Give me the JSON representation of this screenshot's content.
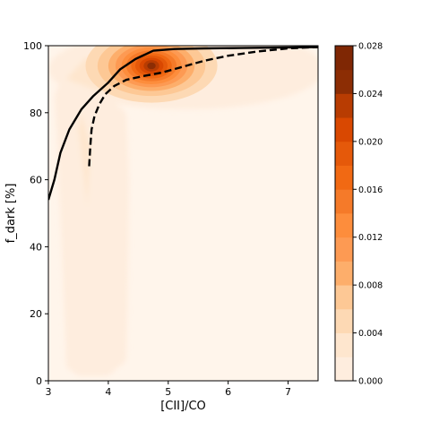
{
  "chart_data": {
    "type": "heatmap",
    "xlabel": "[CII]/CO",
    "ylabel": "f_dark [%]",
    "xlim": [
      3,
      7.5
    ],
    "ylim": [
      0,
      100
    ],
    "xticks": [
      3,
      4,
      5,
      6,
      7
    ],
    "yticks": [
      0,
      20,
      40,
      60,
      80,
      100
    ],
    "grid": false,
    "colorbar": {
      "colormap": "Oranges",
      "levels": [
        0.0,
        0.002,
        0.004,
        0.006,
        0.008,
        0.01,
        0.012,
        0.014,
        0.016,
        0.018,
        0.02,
        0.022,
        0.024,
        0.026,
        0.028
      ],
      "ticks": [
        "0.000",
        "0.004",
        "0.008",
        "0.012",
        "0.016",
        "0.020",
        "0.024",
        "0.028"
      ],
      "colors": [
        "#fff5eb",
        "#feedde",
        "#fee6ce",
        "#fdd9b4",
        "#fdc895",
        "#fdae6b",
        "#fd9a53",
        "#fd8d3c",
        "#f57a29",
        "#f16913",
        "#e5590a",
        "#d94801",
        "#b83c02",
        "#8c2d04",
        "#7f2704"
      ]
    },
    "density_peak": {
      "x": 4.7,
      "y": 94,
      "max": 0.028
    },
    "series": [
      {
        "style": "solid",
        "x": [
          3.0,
          3.1,
          3.2,
          3.35,
          3.55,
          3.75,
          4.0,
          4.2,
          4.45,
          4.75,
          5.1,
          5.6,
          6.2,
          7.0,
          7.5
        ],
        "y": [
          54,
          60,
          68,
          75,
          81,
          85,
          89,
          93,
          96,
          98.5,
          99,
          99.2,
          99.3,
          99.5,
          99.6
        ]
      },
      {
        "style": "dashed",
        "x": [
          3.68,
          3.7,
          3.72,
          3.77,
          3.85,
          3.95,
          4.1,
          4.3,
          4.6,
          4.9,
          5.2,
          5.6,
          6.0,
          6.5,
          7.0,
          7.5
        ],
        "y": [
          64,
          70,
          75,
          79,
          82.5,
          85.5,
          88,
          89.8,
          91,
          92,
          93.5,
          95.5,
          97,
          98.3,
          99.2,
          99.6
        ]
      }
    ]
  }
}
